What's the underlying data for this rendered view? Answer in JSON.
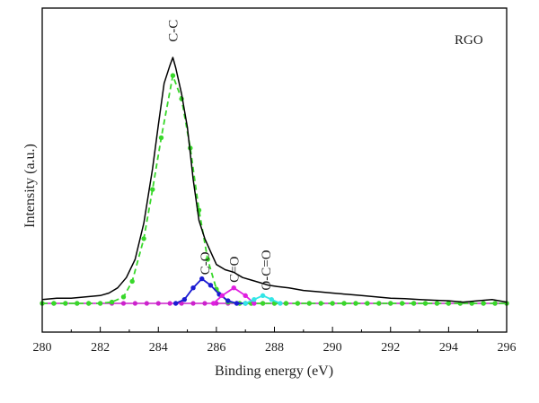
{
  "chart_data": {
    "type": "line",
    "title": "",
    "xlabel": "Binding energy (eV)",
    "ylabel": "Intensity (a.u.)",
    "xlim": [
      280,
      296
    ],
    "ylim": [
      0,
      100
    ],
    "x_ticks": [
      280,
      282,
      284,
      286,
      288,
      290,
      292,
      294,
      296
    ],
    "grid": false,
    "legend": {
      "text": "RGO",
      "placement": "top-right"
    },
    "colors": {
      "envelope": "#000000",
      "C-C": "#38d82a",
      "C-O": "#1a1ad2",
      "C=O": "#e020e0",
      "O-C=O": "#33e6e6",
      "baseline": "#cc22cc"
    },
    "annotations": [
      {
        "text": "C-C",
        "x": 284.5,
        "y": 101
      },
      {
        "text": "C-O",
        "x": 285.6,
        "y": 11
      },
      {
        "text": "C=O",
        "x": 286.6,
        "y": 8
      },
      {
        "text": "O-C=O",
        "x": 287.7,
        "y": 5
      }
    ],
    "envelope": {
      "x": [
        280.0,
        280.5,
        281.0,
        281.5,
        282.0,
        282.3,
        282.6,
        282.9,
        283.2,
        283.5,
        283.8,
        284.0,
        284.2,
        284.4,
        284.5,
        284.6,
        284.8,
        285.0,
        285.2,
        285.4,
        285.6,
        285.8,
        286.0,
        286.3,
        286.6,
        286.9,
        287.2,
        287.5,
        287.8,
        288.1,
        288.5,
        289.0,
        289.5,
        290.0,
        290.5,
        291.0,
        291.5,
        292.0,
        292.5,
        293.0,
        293.5,
        294.0,
        294.5,
        295.0,
        295.5,
        296.0
      ],
      "y": [
        1.5,
        2.0,
        2.0,
        2.5,
        3.0,
        4.0,
        6.0,
        10.0,
        17.0,
        31.0,
        52.0,
        69.0,
        85.0,
        92.0,
        95.0,
        91.0,
        81.0,
        68.0,
        48.0,
        32.0,
        25.0,
        20.0,
        15.0,
        13.0,
        12.0,
        10.0,
        9.0,
        8.0,
        7.0,
        6.5,
        6.0,
        5.0,
        4.5,
        4.0,
        3.5,
        3.0,
        2.5,
        2.0,
        1.8,
        1.5,
        1.2,
        1.0,
        0.5,
        1.0,
        1.5,
        0.5
      ]
    },
    "series": [
      {
        "name": "C-C",
        "x": [
          280.0,
          280.4,
          280.8,
          281.2,
          281.6,
          282.0,
          282.4,
          282.8,
          283.1,
          283.5,
          283.8,
          284.1,
          284.5,
          284.8,
          285.1,
          285.4,
          285.7,
          286.0,
          286.4,
          286.8,
          287.2,
          287.6,
          288.0,
          288.4,
          288.8,
          289.2,
          289.6,
          290.0,
          290.4,
          290.8,
          291.2,
          291.6,
          292.0,
          292.4,
          292.8,
          293.2,
          293.6,
          294.0,
          294.4,
          294.8,
          295.2,
          295.6,
          296.0
        ],
        "y": [
          0,
          0,
          0,
          0,
          0,
          0,
          0.5,
          2.5,
          8.5,
          25,
          44,
          64,
          88,
          79,
          60,
          36,
          17,
          5.5,
          0.5,
          0,
          0,
          0,
          0,
          0,
          0,
          0,
          0,
          0,
          0,
          0,
          0,
          0,
          0,
          0,
          0,
          0,
          0,
          0,
          0,
          0,
          0,
          0,
          0
        ]
      },
      {
        "name": "C-O",
        "x": [
          284.6,
          284.9,
          285.2,
          285.5,
          285.8,
          286.1,
          286.4,
          286.7,
          287.0
        ],
        "y": [
          0,
          1.5,
          6,
          9.5,
          7,
          3.5,
          1,
          0,
          0
        ]
      },
      {
        "name": "C=O",
        "x": [
          285.9,
          286.2,
          286.6,
          287.0,
          287.3
        ],
        "y": [
          0,
          3,
          6,
          3,
          0
        ]
      },
      {
        "name": "O-C=O",
        "x": [
          287.0,
          287.3,
          287.6,
          287.9,
          288.2
        ],
        "y": [
          0,
          1.5,
          3,
          1.5,
          0
        ]
      }
    ]
  }
}
